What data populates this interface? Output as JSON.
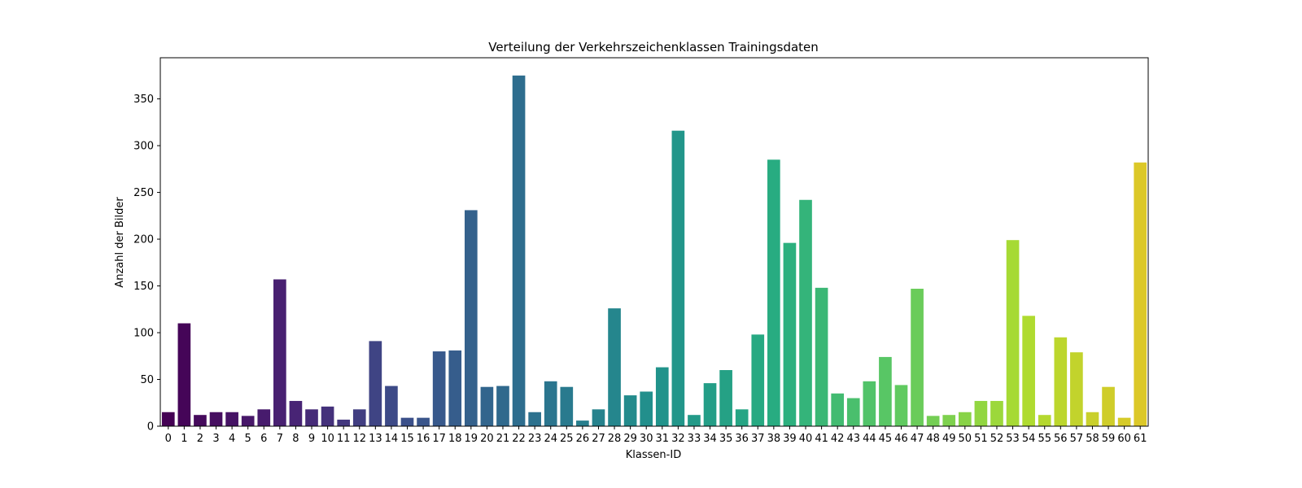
{
  "chart_data": {
    "type": "bar",
    "title": "Verteilung der Verkehrszeichenklassen Trainingsdaten",
    "xlabel": "Klassen-ID",
    "ylabel": "Anzahl der Bilder",
    "categories": [
      "0",
      "1",
      "2",
      "3",
      "4",
      "5",
      "6",
      "7",
      "8",
      "9",
      "10",
      "11",
      "12",
      "13",
      "14",
      "15",
      "16",
      "17",
      "18",
      "19",
      "20",
      "21",
      "22",
      "23",
      "24",
      "25",
      "26",
      "27",
      "28",
      "29",
      "30",
      "31",
      "32",
      "33",
      "34",
      "35",
      "36",
      "37",
      "38",
      "39",
      "40",
      "41",
      "42",
      "43",
      "44",
      "45",
      "46",
      "47",
      "48",
      "49",
      "50",
      "51",
      "52",
      "53",
      "54",
      "55",
      "56",
      "57",
      "58",
      "59",
      "60",
      "61"
    ],
    "values": [
      15,
      110,
      12,
      15,
      15,
      11,
      18,
      157,
      27,
      18,
      21,
      7,
      18,
      91,
      43,
      9,
      9,
      80,
      81,
      231,
      42,
      43,
      375,
      15,
      48,
      42,
      6,
      18,
      126,
      33,
      37,
      63,
      316,
      12,
      46,
      60,
      18,
      98,
      285,
      196,
      242,
      148,
      35,
      30,
      48,
      74,
      44,
      147,
      11,
      12,
      15,
      27,
      27,
      199,
      118,
      12,
      95,
      79,
      15,
      42,
      9,
      282
    ],
    "ylim": [
      0,
      394
    ],
    "yticks": [
      0,
      50,
      100,
      150,
      200,
      250,
      300,
      350
    ],
    "grid": false,
    "legend": "none",
    "colormap": "viridis"
  }
}
